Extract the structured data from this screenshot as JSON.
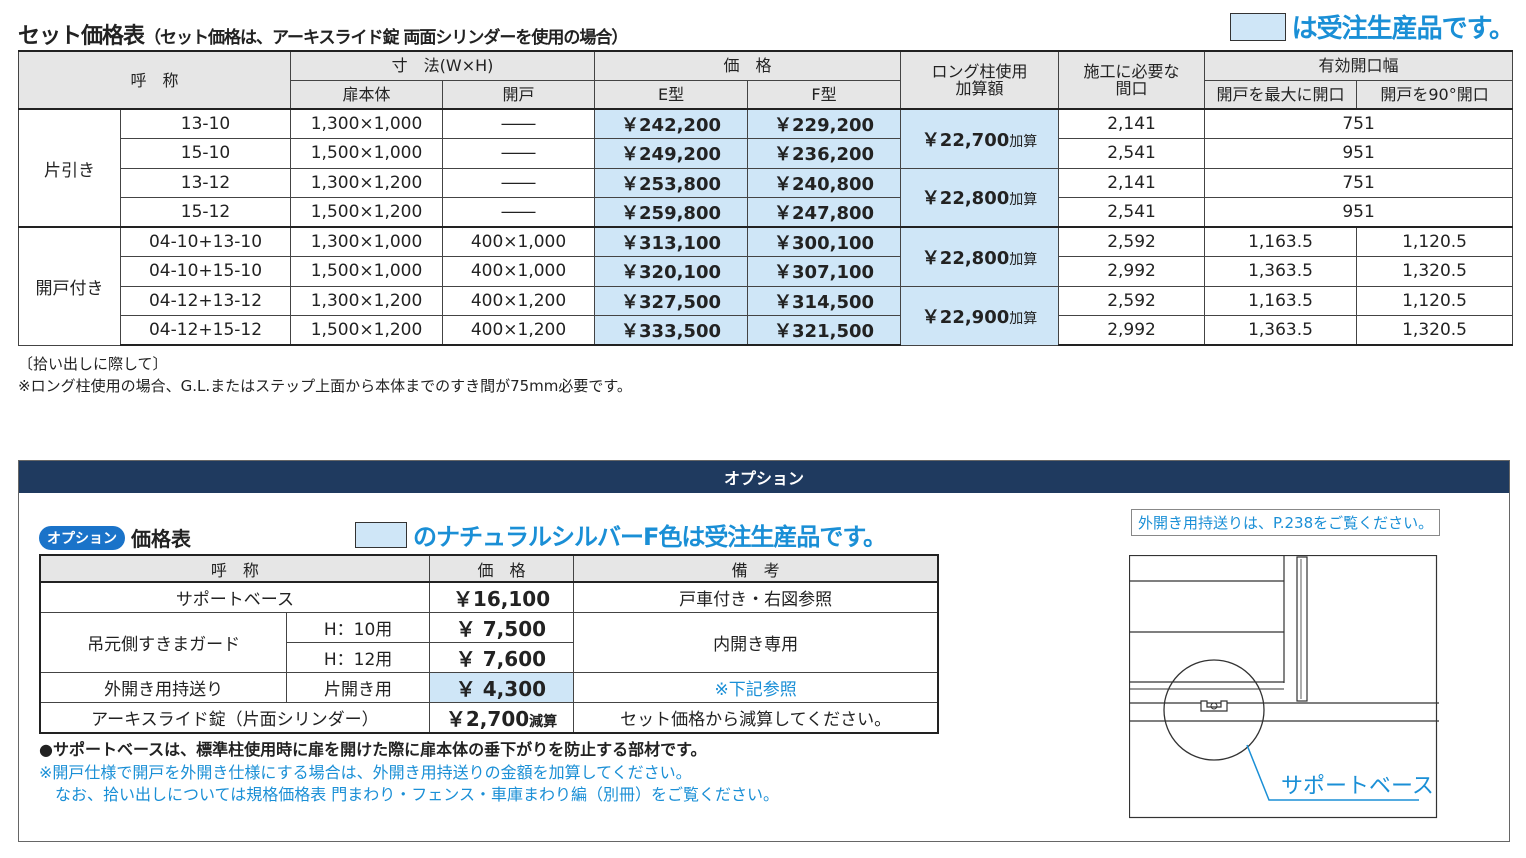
{
  "main": {
    "title": "セット価格表",
    "subtitle": "（セット価格は、アーキスライド錠 両面シリンダーを使用の場合）",
    "legend_text": "は受注生産品です。",
    "headers": {
      "name": "呼　称",
      "dims": "寸　法(W×H)",
      "door_body": "扉本体",
      "kaido": "開戸",
      "price": "価　格",
      "e_type": "E型",
      "f_type": "F型",
      "long_col": "ロング柱使用\n加算額",
      "opening": "施工に必要な\n間口",
      "effective": "有効開口幅",
      "eff_max": "開戸を最大に開口",
      "eff_90": "開戸を90°開口"
    },
    "group1_label": "片引き",
    "group2_label": "開戸付き",
    "kasan_label": "加算",
    "group1_rows": [
      {
        "code": "13-10",
        "door": "1,300×1,000",
        "kaido": "――",
        "e": "￥242,200",
        "f": "￥229,200",
        "opening": "2,141",
        "eff": "751"
      },
      {
        "code": "15-10",
        "door": "1,500×1,000",
        "kaido": "――",
        "e": "￥249,200",
        "f": "￥236,200",
        "opening": "2,541",
        "eff": "951"
      },
      {
        "code": "13-12",
        "door": "1,300×1,200",
        "kaido": "――",
        "e": "￥253,800",
        "f": "￥240,800",
        "opening": "2,141",
        "eff": "751"
      },
      {
        "code": "15-12",
        "door": "1,500×1,200",
        "kaido": "――",
        "e": "￥259,800",
        "f": "￥247,800",
        "opening": "2,541",
        "eff": "951"
      }
    ],
    "group1_long": [
      "￥22,700",
      "￥22,800"
    ],
    "group2_rows": [
      {
        "code": "04-10+13-10",
        "door": "1,300×1,000",
        "kaido": "400×1,000",
        "e": "￥313,100",
        "f": "￥300,100",
        "opening": "2,592",
        "eff_max": "1,163.5",
        "eff_90": "1,120.5"
      },
      {
        "code": "04-10+15-10",
        "door": "1,500×1,000",
        "kaido": "400×1,000",
        "e": "￥320,100",
        "f": "￥307,100",
        "opening": "2,992",
        "eff_max": "1,363.5",
        "eff_90": "1,320.5"
      },
      {
        "code": "04-12+13-12",
        "door": "1,300×1,200",
        "kaido": "400×1,200",
        "e": "￥327,500",
        "f": "￥314,500",
        "opening": "2,592",
        "eff_max": "1,163.5",
        "eff_90": "1,120.5"
      },
      {
        "code": "04-12+15-12",
        "door": "1,500×1,200",
        "kaido": "400×1,200",
        "e": "￥333,500",
        "f": "￥321,500",
        "opening": "2,992",
        "eff_max": "1,363.5",
        "eff_90": "1,320.5"
      }
    ],
    "group2_long": [
      "￥22,800",
      "￥22,900"
    ],
    "notes": [
      "〔拾い出しに際して〕",
      "※ロング柱使用の場合、G.L.またはステップ上面から本体までのすき間が75mm必要です。"
    ]
  },
  "option": {
    "bar_title": "オプション",
    "pill": "オプション",
    "title": "価格表",
    "legend_text": "のナチュラルシルバーF色は受注生産品です。",
    "headers": {
      "name": "呼　称",
      "price": "価　格",
      "remarks": "備　考"
    },
    "rows": {
      "support": {
        "name": "サポートベース",
        "price": "￥16,100",
        "remarks": "戸車付き・右図参照"
      },
      "guard": {
        "name": "吊元側すきまガード",
        "h10": "H：10用",
        "p10": "￥  7,500",
        "h12": "H：12用",
        "p12": "￥  7,600",
        "remarks": "内開き専用"
      },
      "outward": {
        "name": "外開き用持送り",
        "sub": "片開き用",
        "price": "￥  4,300",
        "remarks": "※下記参照"
      },
      "lock": {
        "name": "アーキスライド錠（片面シリンダー）",
        "price": "￥2,700",
        "gensan": "減算",
        "remarks": "セット価格から減算してください。"
      }
    },
    "notes": [
      "●サポートベースは、標準柱使用時に扉を開けた際に扉本体の垂下がりを防止する部材です。",
      "※開戸仕様で開戸を外開き仕様にする場合は、外開き用持送りの金額を加算してください。",
      "　なお、拾い出しについては規格価格表 門まわり・フェンス・車庫まわり編（別冊）をご覧ください。"
    ],
    "ref_note": "外開き用持送りは、P.238をご覧ください。",
    "diagram_label": "サポートベース",
    "colors": {
      "accent_blue": "#1a8fd6",
      "highlight": "#cfe6f7",
      "bar_navy": "#1f3a5f"
    }
  }
}
